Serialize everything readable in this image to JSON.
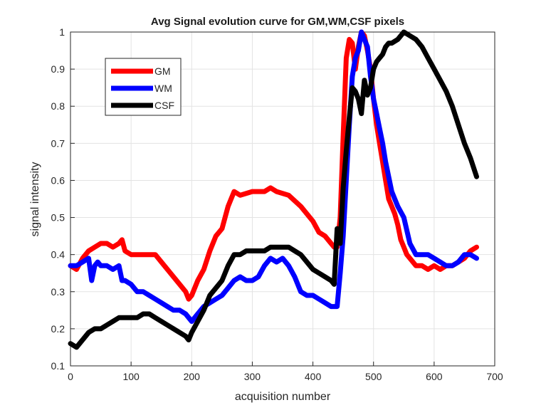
{
  "chart_data": {
    "type": "line",
    "title": "Avg Signal evolution curve for GM,WM,CSF pixels",
    "xlabel": "acquisition number",
    "ylabel": "signal intensity",
    "xlim": [
      0,
      700
    ],
    "ylim": [
      0.1,
      1
    ],
    "xticks": [
      "0",
      "100",
      "200",
      "300",
      "400",
      "500",
      "600",
      "700"
    ],
    "yticks": [
      "0.1",
      "0.2",
      "0.3",
      "0.4",
      "0.5",
      "0.6",
      "0.7",
      "0.8",
      "0.9",
      "1"
    ],
    "grid": true,
    "legend_position": "top-left",
    "series": [
      {
        "name": "GM",
        "color": "#ff0000",
        "x": [
          0,
          10,
          20,
          30,
          40,
          50,
          60,
          70,
          80,
          85,
          90,
          100,
          120,
          140,
          150,
          160,
          170,
          180,
          190,
          195,
          200,
          210,
          220,
          230,
          240,
          250,
          260,
          270,
          280,
          300,
          320,
          330,
          340,
          360,
          380,
          400,
          410,
          420,
          430,
          435,
          440,
          445,
          450,
          455,
          460,
          465,
          470,
          475,
          480,
          485,
          490,
          495,
          500,
          505,
          510,
          515,
          520,
          525,
          530,
          535,
          540,
          545,
          550,
          555,
          560,
          570,
          580,
          590,
          600,
          610,
          620,
          630,
          640,
          650,
          660,
          670
        ],
        "y": [
          0.37,
          0.36,
          0.39,
          0.41,
          0.42,
          0.43,
          0.43,
          0.42,
          0.43,
          0.44,
          0.41,
          0.4,
          0.4,
          0.4,
          0.38,
          0.36,
          0.34,
          0.32,
          0.3,
          0.28,
          0.29,
          0.33,
          0.36,
          0.41,
          0.45,
          0.47,
          0.53,
          0.57,
          0.56,
          0.57,
          0.57,
          0.58,
          0.57,
          0.56,
          0.53,
          0.49,
          0.46,
          0.45,
          0.43,
          0.42,
          0.42,
          0.5,
          0.72,
          0.93,
          0.98,
          0.97,
          0.9,
          0.96,
          1.0,
          0.99,
          0.95,
          0.9,
          0.82,
          0.75,
          0.7,
          0.65,
          0.6,
          0.55,
          0.53,
          0.51,
          0.48,
          0.44,
          0.42,
          0.4,
          0.39,
          0.37,
          0.37,
          0.36,
          0.37,
          0.36,
          0.37,
          0.37,
          0.38,
          0.39,
          0.41,
          0.42
        ]
      },
      {
        "name": "WM",
        "color": "#0000ff",
        "x": [
          0,
          10,
          20,
          30,
          35,
          40,
          45,
          50,
          60,
          70,
          80,
          85,
          90,
          100,
          110,
          120,
          130,
          140,
          150,
          160,
          170,
          180,
          190,
          200,
          210,
          220,
          230,
          240,
          250,
          260,
          270,
          280,
          290,
          300,
          310,
          320,
          330,
          340,
          350,
          360,
          370,
          380,
          390,
          400,
          410,
          420,
          430,
          440,
          445,
          450,
          455,
          460,
          465,
          470,
          475,
          480,
          485,
          490,
          495,
          500,
          505,
          510,
          515,
          520,
          530,
          540,
          550,
          560,
          570,
          580,
          590,
          600,
          610,
          620,
          630,
          640,
          650,
          660,
          670
        ],
        "y": [
          0.37,
          0.37,
          0.38,
          0.39,
          0.33,
          0.37,
          0.38,
          0.37,
          0.37,
          0.36,
          0.37,
          0.33,
          0.33,
          0.32,
          0.3,
          0.3,
          0.29,
          0.28,
          0.27,
          0.26,
          0.25,
          0.25,
          0.24,
          0.22,
          0.24,
          0.26,
          0.27,
          0.28,
          0.29,
          0.31,
          0.33,
          0.34,
          0.33,
          0.33,
          0.34,
          0.37,
          0.39,
          0.38,
          0.39,
          0.37,
          0.34,
          0.3,
          0.29,
          0.29,
          0.28,
          0.27,
          0.26,
          0.26,
          0.35,
          0.45,
          0.6,
          0.75,
          0.88,
          0.93,
          0.95,
          1.0,
          0.98,
          0.96,
          0.88,
          0.82,
          0.78,
          0.74,
          0.7,
          0.65,
          0.57,
          0.53,
          0.5,
          0.43,
          0.4,
          0.4,
          0.4,
          0.39,
          0.38,
          0.37,
          0.37,
          0.38,
          0.4,
          0.4,
          0.39
        ]
      },
      {
        "name": "CSF",
        "color": "#000000",
        "x": [
          0,
          10,
          20,
          30,
          40,
          50,
          60,
          70,
          80,
          90,
          100,
          110,
          120,
          130,
          140,
          150,
          160,
          170,
          180,
          190,
          195,
          200,
          210,
          220,
          230,
          240,
          250,
          260,
          270,
          280,
          290,
          300,
          310,
          320,
          330,
          340,
          350,
          360,
          370,
          380,
          390,
          400,
          410,
          420,
          430,
          435,
          440,
          445,
          450,
          455,
          460,
          465,
          470,
          475,
          480,
          485,
          490,
          495,
          500,
          505,
          510,
          515,
          520,
          525,
          530,
          540,
          550,
          560,
          570,
          580,
          590,
          600,
          610,
          620,
          630,
          640,
          650,
          660,
          670
        ],
        "y": [
          0.16,
          0.15,
          0.17,
          0.19,
          0.2,
          0.2,
          0.21,
          0.22,
          0.23,
          0.23,
          0.23,
          0.23,
          0.24,
          0.24,
          0.23,
          0.22,
          0.21,
          0.2,
          0.19,
          0.18,
          0.17,
          0.19,
          0.22,
          0.25,
          0.29,
          0.31,
          0.33,
          0.37,
          0.4,
          0.4,
          0.41,
          0.41,
          0.41,
          0.41,
          0.42,
          0.42,
          0.42,
          0.42,
          0.41,
          0.4,
          0.38,
          0.36,
          0.35,
          0.34,
          0.33,
          0.32,
          0.47,
          0.43,
          0.58,
          0.68,
          0.77,
          0.85,
          0.84,
          0.82,
          0.78,
          0.87,
          0.83,
          0.85,
          0.9,
          0.92,
          0.93,
          0.94,
          0.96,
          0.97,
          0.97,
          0.98,
          1.0,
          0.99,
          0.98,
          0.96,
          0.93,
          0.9,
          0.87,
          0.84,
          0.8,
          0.75,
          0.7,
          0.66,
          0.61
        ]
      }
    ]
  }
}
